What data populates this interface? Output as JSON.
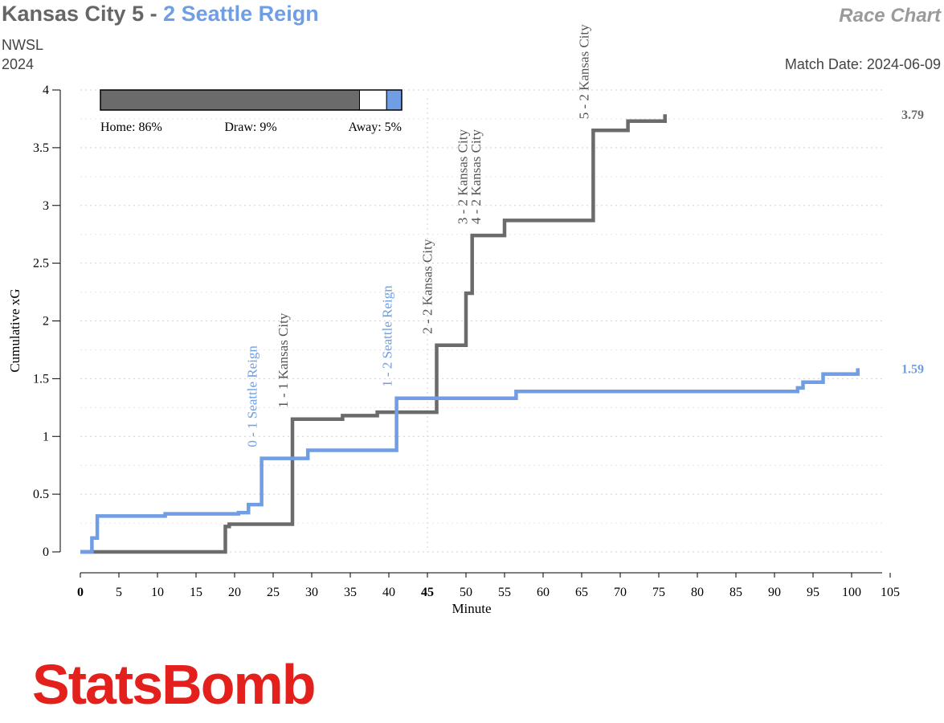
{
  "header": {
    "home_team_score": "Kansas City 5",
    "separator": "-",
    "away_team_score": "2 Seattle Reign",
    "competition": "NWSL",
    "season": "2024",
    "chart_name": "Race Chart",
    "match_date": "Match Date: 2024-06-09"
  },
  "colors": {
    "home": "#6b6b6b",
    "away": "#6f9ee4",
    "draw": "#ffffff",
    "brand": "#e3201b"
  },
  "probabilities": {
    "home": 86,
    "draw": 9,
    "away": 5,
    "home_label": "Home: 86%",
    "draw_label": "Draw: 9%",
    "away_label": "Away: 5%"
  },
  "logo": {
    "text": "StatsBomb"
  },
  "chart_data": {
    "type": "line",
    "xlabel": "Minute",
    "ylabel": "Cumulative xG",
    "xlim": [
      0,
      105
    ],
    "ylim": [
      0,
      4
    ],
    "x_ticks": [
      "0",
      "5",
      "10",
      "15",
      "20",
      "25",
      "30",
      "35",
      "40",
      "45",
      "50",
      "55",
      "60",
      "65",
      "70",
      "75",
      "80",
      "85",
      "90",
      "95",
      "100",
      "105"
    ],
    "y_ticks": [
      "0",
      "0.5",
      "1",
      "1.5",
      "2",
      "2.5",
      "3",
      "3.5",
      "4"
    ],
    "grid": true,
    "halftime_minute": 45,
    "series": [
      {
        "name": "Kansas City",
        "step_points": [
          [
            0,
            0
          ],
          [
            18.8,
            0
          ],
          [
            18.8,
            0.22
          ],
          [
            19.3,
            0.22
          ],
          [
            19.3,
            0.24
          ],
          [
            27.5,
            0.24
          ],
          [
            27.5,
            1.15
          ],
          [
            34,
            1.15
          ],
          [
            34,
            1.18
          ],
          [
            38.5,
            1.18
          ],
          [
            38.5,
            1.21
          ],
          [
            46.2,
            1.21
          ],
          [
            46.2,
            1.79
          ],
          [
            50,
            1.79
          ],
          [
            50,
            2.24
          ],
          [
            50.8,
            2.24
          ],
          [
            50.8,
            2.74
          ],
          [
            55,
            2.74
          ],
          [
            55,
            2.87
          ],
          [
            66.5,
            2.87
          ],
          [
            66.5,
            3.65
          ],
          [
            71,
            3.65
          ],
          [
            71,
            3.73
          ],
          [
            75.8,
            3.73
          ],
          [
            75.8,
            3.79
          ]
        ],
        "final_label": "3.79"
      },
      {
        "name": "Seattle Reign",
        "step_points": [
          [
            0,
            0
          ],
          [
            1.5,
            0
          ],
          [
            1.5,
            0.12
          ],
          [
            2.2,
            0.12
          ],
          [
            2.2,
            0.31
          ],
          [
            11,
            0.31
          ],
          [
            11,
            0.33
          ],
          [
            20.5,
            0.33
          ],
          [
            20.5,
            0.34
          ],
          [
            21.8,
            0.34
          ],
          [
            21.8,
            0.41
          ],
          [
            23.5,
            0.41
          ],
          [
            23.5,
            0.81
          ],
          [
            29.5,
            0.81
          ],
          [
            29.5,
            0.88
          ],
          [
            41,
            0.88
          ],
          [
            41,
            1.33
          ],
          [
            56.5,
            1.33
          ],
          [
            56.5,
            1.39
          ],
          [
            93,
            1.39
          ],
          [
            93,
            1.42
          ],
          [
            93.7,
            1.42
          ],
          [
            93.7,
            1.47
          ],
          [
            96.3,
            1.47
          ],
          [
            96.3,
            1.54
          ],
          [
            100.8,
            1.54
          ],
          [
            100.8,
            1.59
          ]
        ],
        "final_label": "1.59"
      }
    ],
    "goal_annotations": [
      {
        "minute": 23.5,
        "team": "away",
        "text": "0 - 1 Seattle Reign"
      },
      {
        "minute": 27.5,
        "team": "home",
        "text": "1 - 1 Kansas City"
      },
      {
        "minute": 41,
        "team": "away",
        "text": "1 - 2 Seattle Reign"
      },
      {
        "minute": 46.2,
        "team": "home",
        "text": "2 - 2 Kansas City"
      },
      {
        "minute": 50.8,
        "team": "home",
        "text": "3 - 2 Kansas City"
      },
      {
        "minute": 52.5,
        "team": "home",
        "text": "4 - 2 Kansas City"
      },
      {
        "minute": 66.5,
        "team": "home",
        "text": "5 - 2 Kansas City"
      }
    ]
  }
}
